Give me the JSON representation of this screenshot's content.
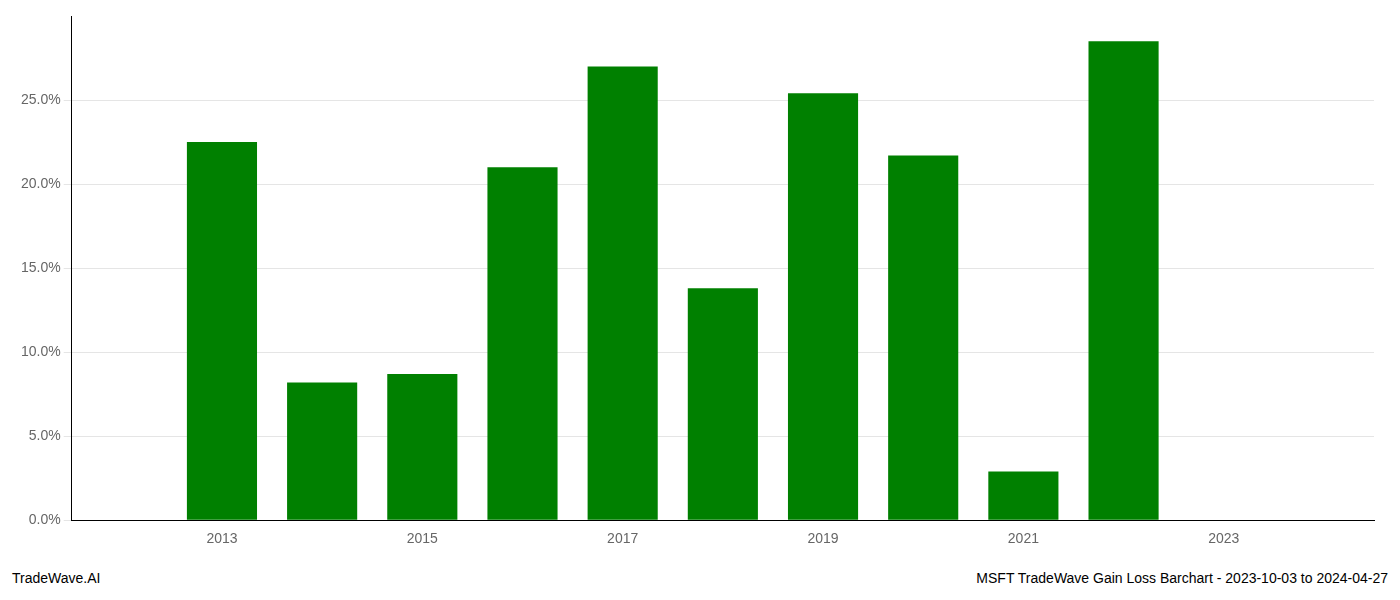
{
  "chart_data": {
    "type": "bar",
    "x": [
      2013,
      2014,
      2015,
      2016,
      2017,
      2018,
      2019,
      2020,
      2021,
      2022
    ],
    "values": [
      0.225,
      0.082,
      0.087,
      0.21,
      0.27,
      0.138,
      0.254,
      0.217,
      0.029,
      0.285
    ],
    "color": "#008000",
    "xlim": [
      2011.5,
      2024.5
    ],
    "xticks": [
      2013,
      2015,
      2017,
      2019,
      2021,
      2023
    ],
    "ylim": [
      0,
      0.3
    ],
    "yticks": [
      {
        "value": 0.0,
        "label": "0.0%"
      },
      {
        "value": 0.05,
        "label": "5.0%"
      },
      {
        "value": 0.1,
        "label": "10.0%"
      },
      {
        "value": 0.15,
        "label": "15.0%"
      },
      {
        "value": 0.2,
        "label": "20.0%"
      },
      {
        "value": 0.25,
        "label": "25.0%"
      }
    ],
    "grid": true,
    "annotations": [
      "TradeWave.AI",
      "MSFT TradeWave Gain Loss Barchart - 2023-10-03 to 2024-04-27"
    ]
  }
}
